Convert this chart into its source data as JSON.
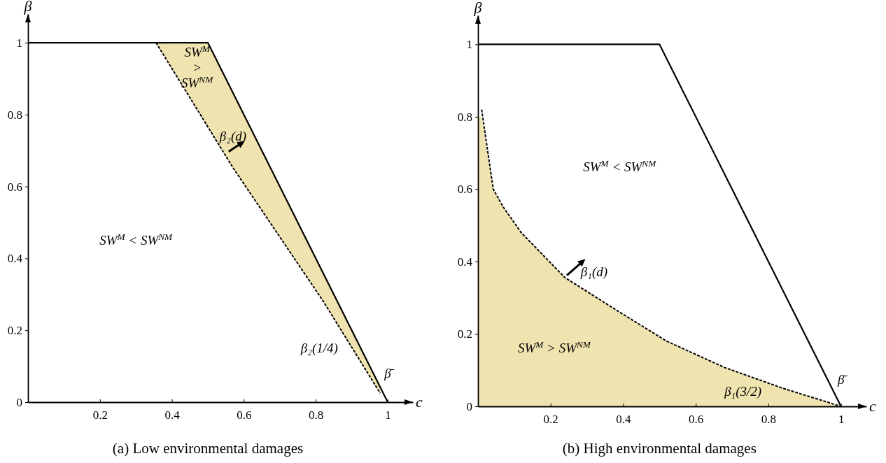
{
  "chart_data": [
    {
      "type": "line",
      "title": "(a) Low environmental damages",
      "xlabel": "c",
      "ylabel": "β",
      "xlim": [
        0,
        1.07
      ],
      "ylim": [
        0,
        1.08
      ],
      "xticks": [
        0.2,
        0.4,
        0.6,
        0.8,
        1
      ],
      "yticks": [
        0,
        0.2,
        0.4,
        0.6,
        0.8,
        1
      ],
      "grid": false,
      "marker": "none",
      "series": [
        {
          "color": "#000000",
          "line_style": "dashed",
          "x": [
            0.356,
            0.5,
            0.57,
            0.82,
            0.979
          ],
          "values": [
            1,
            0.766,
            0.652,
            0.282,
            0.025
          ],
          "lower": [
            1,
            0.766,
            0.652,
            0.282,
            0.025
          ],
          "upper": [
            1,
            1,
            0.86,
            0.36,
            0.042
          ]
        },
        {
          "color": "#000000",
          "line_style": "solid",
          "x": [
            0,
            0.5,
            1
          ],
          "values": [
            1,
            1,
            0
          ]
        }
      ],
      "annotations": [
        "SW$^{M}$\n>\nSW$^{NM}$",
        "β₂(d)",
        "SW$^{M}$ < SW$^{NM}$",
        "β₂(1/4)",
        "β̄"
      ]
    },
    {
      "type": "line",
      "title": "(b) High environmental damages",
      "xlabel": "c",
      "ylabel": "β",
      "xlim": [
        0,
        1.07
      ],
      "ylim": [
        0,
        1.08
      ],
      "xticks": [
        0.2,
        0.4,
        0.6,
        0.8,
        1
      ],
      "yticks": [
        0,
        0.2,
        0.4,
        0.6,
        0.8,
        1
      ],
      "grid": false,
      "marker": "none",
      "series": [
        {
          "type": "area",
          "color": "#efe3b0",
          "x": [
            0,
            0.01,
            0.042,
            0.07,
            0.119,
            0.239,
            0.392,
            0.52,
            0.68,
            0.84,
            1
          ],
          "values": [
            0.8,
            0.8,
            0.6,
            0.55,
            0.48,
            0.356,
            0.259,
            0.18,
            0.107,
            0.05,
            0
          ]
        },
        {
          "color": "#000000",
          "line_style": "solid",
          "x": [
            0,
            0.5,
            1
          ],
          "values": [
            1,
            1,
            0
          ]
        },
        {
          "color": "#000000",
          "line_style": "dashed",
          "x": [
            0.01,
            0.042,
            0.07,
            0.119,
            0.239,
            0.392,
            0.52,
            0.68,
            0.84,
            1
          ],
          "values": [
            0.82,
            0.6,
            0.55,
            0.48,
            0.356,
            0.259,
            0.18,
            0.107,
            0.05,
            0
          ]
        }
      ],
      "annotations": [
        "SW$^{M}$ < SW$^{NM}$",
        "β₁(d)",
        "SW$^{M}$ > SW$^{NM}$",
        "β₁(3/2)",
        "β̄"
      ]
    }
  ]
}
